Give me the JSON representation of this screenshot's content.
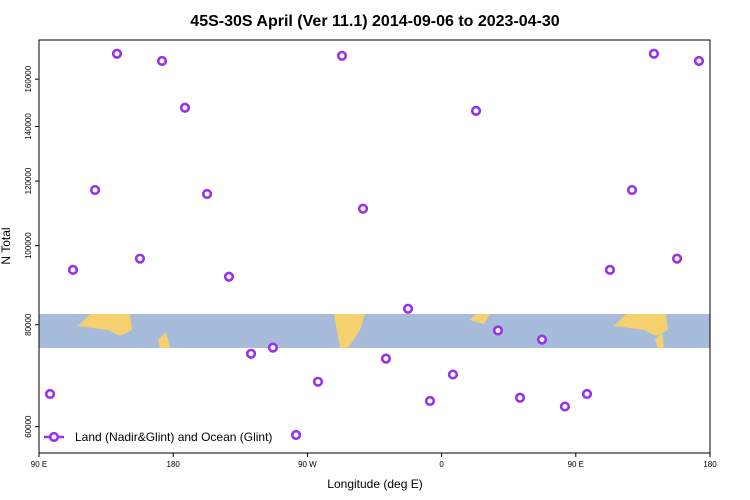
{
  "chart_data": {
    "type": "scatter",
    "title": "45S-30S April (Ver 11.1)   2014-09-06 to 2023-04-30",
    "xlabel": "Longitude (deg E)",
    "ylabel": "N Total",
    "xlim": [
      90,
      540
    ],
    "xticks": [
      {
        "value": 90,
        "label": "90 E"
      },
      {
        "value": 180,
        "label": "180"
      },
      {
        "value": 270,
        "label": "90 W"
      },
      {
        "value": 360,
        "label": "0"
      },
      {
        "value": 450,
        "label": "90 E"
      },
      {
        "value": 540,
        "label": "180"
      }
    ],
    "ylim": [
      55700,
      178700
    ],
    "yticks": [
      60000,
      80000,
      100000,
      120000,
      140000,
      160000
    ],
    "yscale": "log",
    "legend": "bottom-left",
    "series": [
      {
        "name": "Land (Nadir&Glint) and Ocean (Glint)",
        "color": "#9b30e8",
        "x": [
          97.4,
          112.8,
          127.6,
          142.3,
          157.7,
          172.5,
          187.9,
          202.7,
          217.4,
          232.2,
          246.9,
          262.4,
          277.1,
          293.2,
          307.3,
          322.7,
          337.5,
          352.2,
          367.6,
          383.1,
          397.8,
          412.6,
          427.3,
          442.7,
          457.5,
          472.9,
          487.7,
          502.4,
          517.9,
          532.6
        ],
        "values": [
          65800,
          93400,
          117000,
          171900,
          96400,
          168400,
          147600,
          115700,
          91600,
          73700,
          75000,
          58600,
          68100,
          170900,
          111000,
          72700,
          83700,
          64500,
          69500,
          146300,
          78700,
          65100,
          76700,
          63500,
          65800,
          93400,
          117000,
          171900,
          96400,
          168400
        ]
      }
    ]
  }
}
